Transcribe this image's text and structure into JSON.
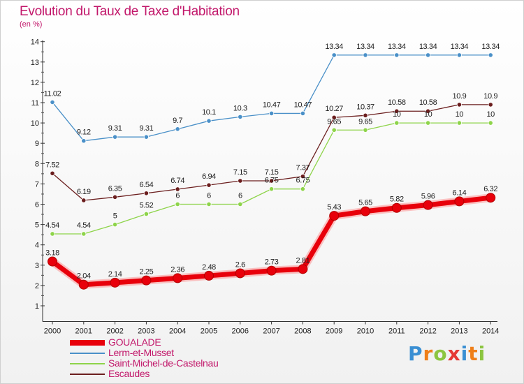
{
  "title": "Evolution du Taux de Taxe d'Habitation",
  "subtitle": "(en %)",
  "logo": {
    "letters": [
      "P",
      "r",
      "o",
      "x",
      "i",
      "t",
      "i"
    ],
    "colors": [
      "#3a8fd3",
      "#ef7f1a",
      "#8cc540",
      "#e53935",
      "#3a8fd3",
      "#ef7f1a",
      "#8cc540"
    ]
  },
  "chart_data": {
    "type": "line",
    "title": "Evolution du Taux de Taxe d'Habitation",
    "ylabel": "(en %)",
    "xlabel": "",
    "x": [
      "2000",
      "2001",
      "2002",
      "2003",
      "2004",
      "2005",
      "2006",
      "2007",
      "2008",
      "2009",
      "2010",
      "2011",
      "2012",
      "2013",
      "2014"
    ],
    "ylim": [
      0.5,
      14
    ],
    "yticks": [
      "1",
      "2",
      "3",
      "4",
      "5",
      "6",
      "7",
      "8",
      "9",
      "10",
      "11",
      "12",
      "13",
      "14"
    ],
    "grid": false,
    "legend_position": "bottom-left",
    "series": [
      {
        "name": "GOUALADE",
        "color": "#e8000b",
        "weight": "bold",
        "values": [
          3.18,
          2.04,
          2.14,
          2.25,
          2.36,
          2.48,
          2.6,
          2.73,
          2.81,
          5.43,
          5.65,
          5.82,
          5.96,
          6.14,
          6.32
        ],
        "labels": [
          "3.18",
          "2.04",
          "2.14",
          "2.25",
          "2.36",
          "2.48",
          "2.6",
          "2.73",
          "2.81",
          "5.43",
          "5.65",
          "5.82",
          "5.96",
          "6.14",
          "6.32"
        ]
      },
      {
        "name": "Lerm-et-Musset",
        "color": "#4a90c8",
        "weight": "thin",
        "values": [
          11.02,
          9.12,
          9.31,
          9.31,
          9.7,
          10.1,
          10.3,
          10.47,
          10.47,
          13.34,
          13.34,
          13.34,
          13.34,
          13.34,
          13.34
        ],
        "labels": [
          "11.02",
          "9.12",
          "9.31",
          "9.31",
          "9.7",
          "10.1",
          "10.3",
          "10.47",
          "10.47",
          "13.34",
          "13.34",
          "13.34",
          "13.34",
          "13.34",
          "13.34"
        ]
      },
      {
        "name": "Saint-Michel-de-Castelnau",
        "color": "#8ed44a",
        "weight": "thin",
        "values": [
          4.54,
          4.54,
          5,
          5.52,
          6,
          6,
          6,
          6.75,
          6.75,
          9.65,
          9.65,
          10,
          10,
          10,
          10
        ],
        "labels": [
          "4.54",
          "4.54",
          "5",
          "5.52",
          "6",
          "6",
          "6",
          "6.75",
          "6.75",
          "9.65",
          "9.65",
          "10",
          "10",
          "10",
          "10"
        ]
      },
      {
        "name": "Escaudes",
        "color": "#6b1e1e",
        "weight": "thin",
        "values": [
          7.52,
          6.19,
          6.35,
          6.54,
          6.74,
          6.94,
          7.15,
          7.15,
          7.37,
          10.27,
          10.37,
          10.58,
          10.58,
          10.9,
          10.9
        ],
        "labels": [
          "7.52",
          "6.19",
          "6.35",
          "6.54",
          "6.74",
          "6.94",
          "7.15",
          "7.15",
          "7.37",
          "10.27",
          "10.37",
          "10.58",
          "10.58",
          "10.9",
          "10.9"
        ]
      }
    ]
  }
}
